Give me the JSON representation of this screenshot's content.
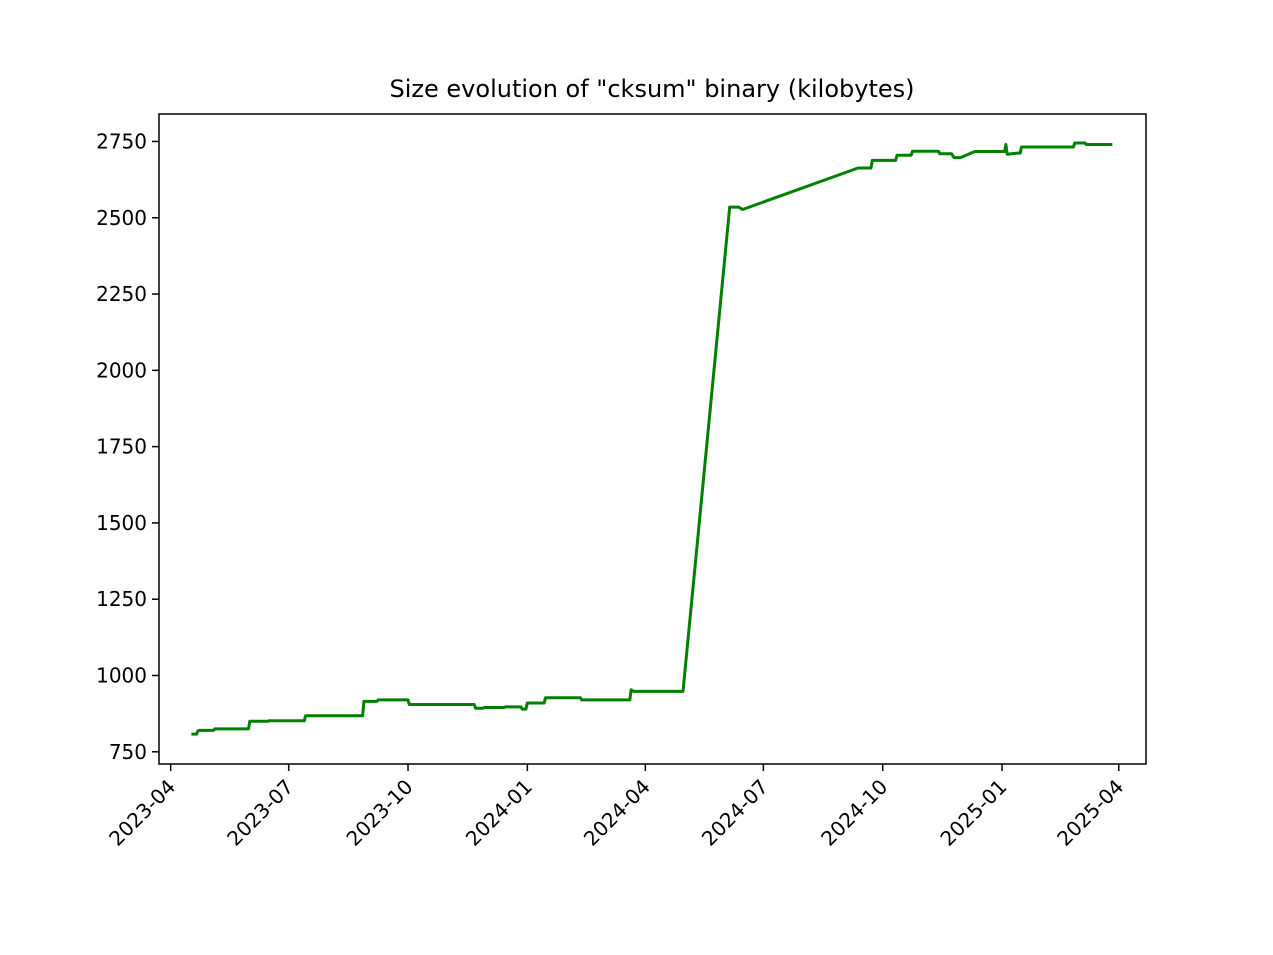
{
  "chart_data": {
    "type": "line",
    "title": "Size evolution of \"cksum\" binary (kilobytes)",
    "xlabel": "",
    "ylabel": "",
    "x_axis": "date",
    "xlim": [
      "2023-03-23",
      "2025-04-22"
    ],
    "ylim": [
      710,
      2840
    ],
    "grid": false,
    "line_color": "#008000",
    "x_ticks": [
      "2023-04",
      "2023-07",
      "2023-10",
      "2024-01",
      "2024-04",
      "2024-07",
      "2024-10",
      "2025-01",
      "2025-04"
    ],
    "y_ticks": [
      750,
      1000,
      1250,
      1500,
      1750,
      2000,
      2250,
      2500,
      2750
    ],
    "series": [
      {
        "x": [
          "2023-04-17",
          "2023-04-21",
          "2023-04-22",
          "2023-04-23",
          "2023-05-04",
          "2023-05-05",
          "2023-05-31",
          "2023-06-01",
          "2023-06-15",
          "2023-06-16",
          "2023-07-13",
          "2023-07-14",
          "2023-08-27",
          "2023-08-28",
          "2023-09-07",
          "2023-09-08",
          "2023-10-01",
          "2023-10-02",
          "2023-11-21",
          "2023-11-22",
          "2023-11-28",
          "2023-11-29",
          "2023-12-14",
          "2023-12-15",
          "2023-12-27",
          "2023-12-28",
          "2023-12-31",
          "2024-01-01",
          "2024-01-11",
          "2024-01-12",
          "2024-01-14",
          "2024-01-15",
          "2024-02-11",
          "2024-02-12",
          "2024-03-20",
          "2024-03-21",
          "2024-03-23",
          "2024-04-30",
          "2024-06-05",
          "2024-06-12",
          "2024-06-15",
          "2024-09-12",
          "2024-09-22",
          "2024-09-23",
          "2024-10-11",
          "2024-10-12",
          "2024-10-23",
          "2024-10-24",
          "2024-11-13",
          "2024-11-14",
          "2024-11-23",
          "2024-11-25",
          "2024-11-30",
          "2024-12-11",
          "2025-01-03",
          "2025-01-04",
          "2025-01-05",
          "2025-01-13",
          "2025-01-15",
          "2025-01-16",
          "2025-02-25",
          "2025-02-26",
          "2025-03-06",
          "2025-03-07",
          "2025-03-27"
        ],
        "y": [
          808,
          808,
          818,
          820,
          820,
          825,
          825,
          850,
          850,
          852,
          852,
          868,
          868,
          915,
          915,
          920,
          920,
          905,
          905,
          893,
          893,
          895,
          895,
          897,
          897,
          890,
          890,
          910,
          910,
          910,
          910,
          927,
          927,
          920,
          920,
          953,
          948,
          948,
          2535,
          2535,
          2527,
          2663,
          2663,
          2688,
          2688,
          2705,
          2705,
          2718,
          2718,
          2710,
          2710,
          2697,
          2697,
          2717,
          2717,
          2740,
          2708,
          2712,
          2712,
          2732,
          2732,
          2745,
          2745,
          2740,
          2740
        ]
      }
    ]
  }
}
